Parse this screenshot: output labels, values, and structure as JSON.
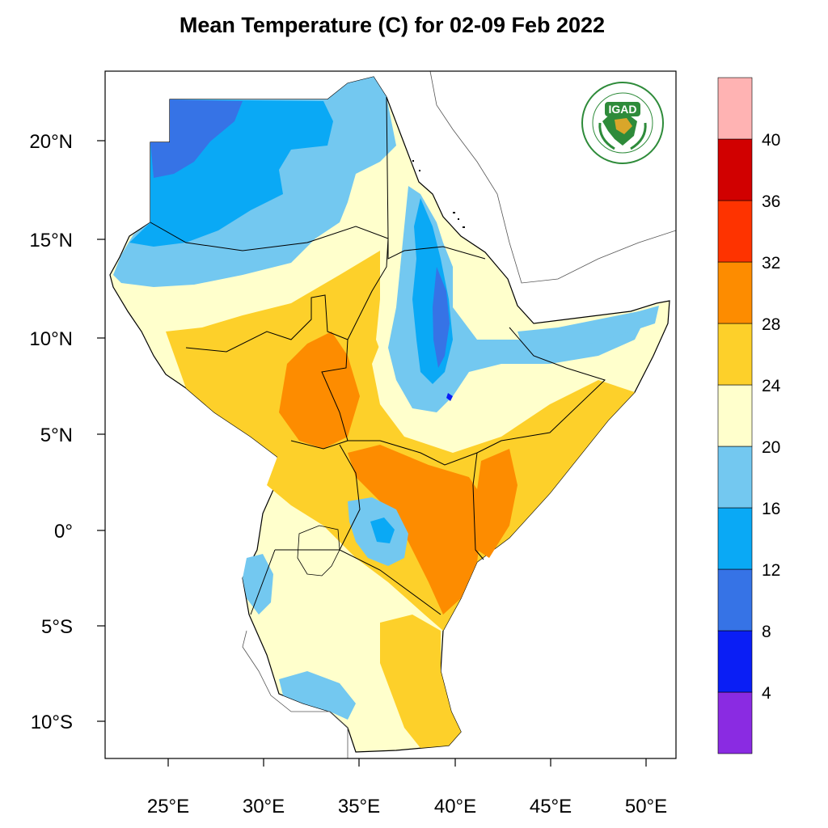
{
  "title": "Mean Temperature (C) for 02-09 Feb 2022",
  "logo": {
    "text": "IGAD",
    "ring_text_top": "INTERGOVERNMENTAL AUTHORITY ON DEVELOPMENT",
    "ring_text_bottom": "AUTORITÉ INTERGOUVERNEMENTALE POUR LE DÉVELOPPEMENT",
    "color": "#2e8b3a"
  },
  "axes": {
    "lon_ticks": [
      "25°E",
      "30°E",
      "35°E",
      "40°E",
      "45°E",
      "50°E"
    ],
    "lat_ticks": [
      "20°N",
      "15°N",
      "10°N",
      "5°N",
      "0°",
      "5°S",
      "10°S"
    ]
  },
  "colorbar": {
    "labels": [
      "4",
      "8",
      "12",
      "16",
      "20",
      "24",
      "28",
      "32",
      "36",
      "40"
    ],
    "colors": [
      "#8a2be2",
      "#0a1ef5",
      "#3673e6",
      "#0aa9f5",
      "#73c8f0",
      "#ffffcc",
      "#fdd02a",
      "#fd8c00",
      "#fe3300",
      "#d10000",
      "#ffb3b3"
    ]
  }
}
